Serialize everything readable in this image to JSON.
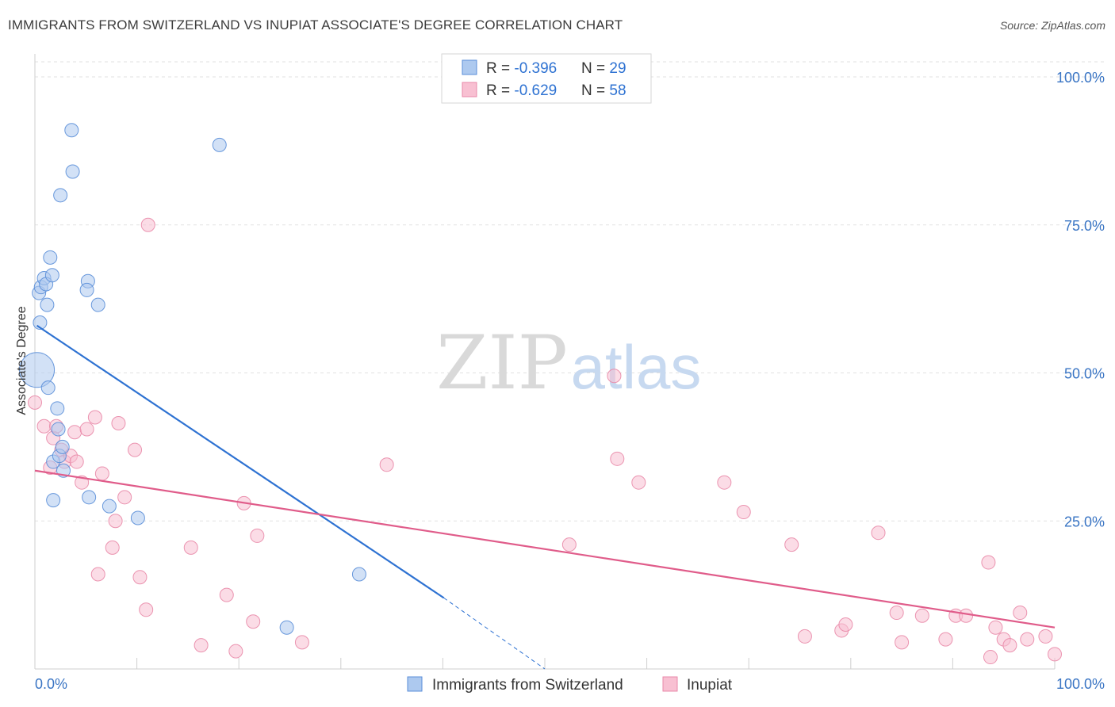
{
  "title": "IMMIGRANTS FROM SWITZERLAND VS INUPIAT ASSOCIATE'S DEGREE CORRELATION CHART",
  "source": "Source: ZipAtlas.com",
  "watermark": {
    "zip": "ZIP",
    "atlas": "atlas"
  },
  "legend_box": {
    "rows": [
      {
        "r_label": "R = ",
        "r_value": "-0.396",
        "n_label": "N = ",
        "n_value": "29",
        "color": "#adc9ef",
        "stroke": "#5a8ed8"
      },
      {
        "r_label": "R = ",
        "r_value": "-0.629",
        "n_label": "N = ",
        "n_value": "58",
        "color": "#f8c0d2",
        "stroke": "#e989a9"
      }
    ]
  },
  "chart_data": {
    "type": "scatter",
    "xlabel": "",
    "ylabel": "Associate's Degree",
    "xlim": [
      0,
      100
    ],
    "ylim": [
      0,
      100
    ],
    "x_ticks": [
      "0.0%",
      "100.0%"
    ],
    "y_ticks": [
      {
        "value": 25,
        "label": "25.0%"
      },
      {
        "value": 50,
        "label": "50.0%"
      },
      {
        "value": 75,
        "label": "75.0%"
      },
      {
        "value": 100,
        "label": "100.0%"
      }
    ],
    "grid": true,
    "legend": "bottom-center",
    "series": [
      {
        "name": "Immigrants from Switzerland",
        "color": "#adc9ef",
        "stroke": "#5a8ed8",
        "trend_color": "#2e72d2",
        "trend": {
          "x0": 0.2,
          "y0": 58,
          "x1": 40.1,
          "y1": 12,
          "dash_x1": 50,
          "dash_y1": 0
        },
        "points": [
          [
            0.2,
            50.5
          ],
          [
            0.4,
            63.5
          ],
          [
            0.5,
            58.5
          ],
          [
            0.6,
            64.5
          ],
          [
            0.9,
            66
          ],
          [
            1.1,
            65
          ],
          [
            1.2,
            61.5
          ],
          [
            1.3,
            47.5
          ],
          [
            1.5,
            69.5
          ],
          [
            1.7,
            66.5
          ],
          [
            1.8,
            35
          ],
          [
            1.8,
            28.5
          ],
          [
            2.2,
            44
          ],
          [
            2.3,
            40.5
          ],
          [
            2.4,
            36
          ],
          [
            2.7,
            37.5
          ],
          [
            2.8,
            33.5
          ],
          [
            3.6,
            91
          ],
          [
            3.7,
            84
          ],
          [
            2.5,
            80
          ],
          [
            5.2,
            65.5
          ],
          [
            5.1,
            64
          ],
          [
            5.3,
            29
          ],
          [
            6.2,
            61.5
          ],
          [
            7.3,
            27.5
          ],
          [
            10.1,
            25.5
          ],
          [
            18.1,
            88.5
          ],
          [
            31.8,
            16
          ],
          [
            24.7,
            7
          ]
        ],
        "large_point_index": 0
      },
      {
        "name": "Inupiat",
        "color": "#f8c0d2",
        "stroke": "#e989a9",
        "trend_color": "#e05c8a",
        "trend": {
          "x0": 0,
          "y0": 33.5,
          "x1": 100,
          "y1": 7
        },
        "points": [
          [
            0,
            45
          ],
          [
            0.9,
            41
          ],
          [
            1.5,
            34
          ],
          [
            1.8,
            39
          ],
          [
            2.1,
            41
          ],
          [
            2.6,
            37
          ],
          [
            2.9,
            35
          ],
          [
            3.5,
            36
          ],
          [
            3.9,
            40
          ],
          [
            4.1,
            35
          ],
          [
            4.6,
            31.5
          ],
          [
            5.1,
            40.5
          ],
          [
            5.9,
            42.5
          ],
          [
            6.2,
            16
          ],
          [
            6.6,
            33
          ],
          [
            7.6,
            20.5
          ],
          [
            7.9,
            25
          ],
          [
            8.2,
            41.5
          ],
          [
            8.8,
            29
          ],
          [
            9.8,
            37
          ],
          [
            10.3,
            15.5
          ],
          [
            10.9,
            10
          ],
          [
            11.1,
            75
          ],
          [
            15.3,
            20.5
          ],
          [
            16.3,
            4
          ],
          [
            18.8,
            12.5
          ],
          [
            19.7,
            3
          ],
          [
            20.5,
            28
          ],
          [
            21.4,
            8
          ],
          [
            21.8,
            22.5
          ],
          [
            26.2,
            4.5
          ],
          [
            34.5,
            34.5
          ],
          [
            52.4,
            21
          ],
          [
            56.8,
            49.5
          ],
          [
            57.1,
            35.5
          ],
          [
            59.2,
            31.5
          ],
          [
            67.6,
            31.5
          ],
          [
            69.5,
            26.5
          ],
          [
            74.2,
            21
          ],
          [
            75.5,
            5.5
          ],
          [
            79.1,
            6.5
          ],
          [
            79.5,
            7.5
          ],
          [
            82.7,
            23
          ],
          [
            84.5,
            9.5
          ],
          [
            85,
            4.5
          ],
          [
            87,
            9
          ],
          [
            89.3,
            5
          ],
          [
            90.3,
            9
          ],
          [
            91.3,
            9
          ],
          [
            93.5,
            18
          ],
          [
            93.7,
            2
          ],
          [
            94.2,
            7
          ],
          [
            95,
            5
          ],
          [
            95.6,
            4
          ],
          [
            96.6,
            9.5
          ],
          [
            97.3,
            5
          ],
          [
            99.1,
            5.5
          ],
          [
            100,
            2.5
          ]
        ]
      }
    ]
  }
}
